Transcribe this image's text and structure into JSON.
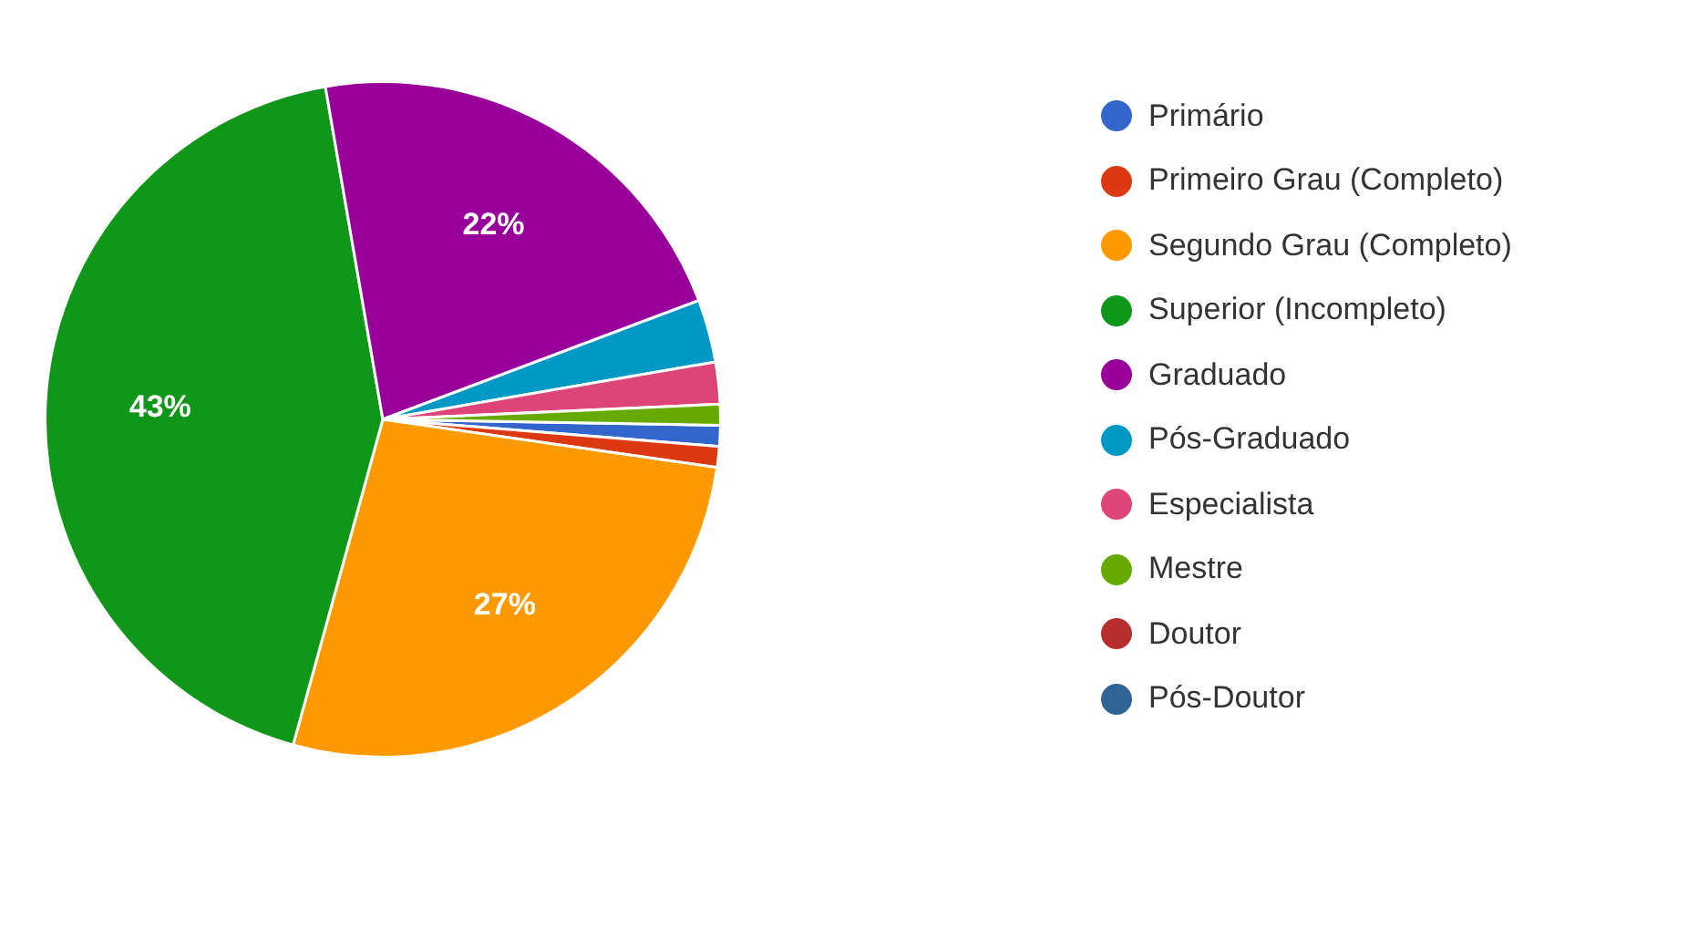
{
  "chart_data": {
    "type": "pie",
    "categories": [
      "Primário",
      "Primeiro Grau (Completo)",
      "Segundo Grau (Completo)",
      "Superior (Incompleto)",
      "Graduado",
      "Pós-Graduado",
      "Especialista",
      "Mestre",
      "Doutor",
      "Pós-Doutor"
    ],
    "values": [
      1,
      1,
      27,
      43,
      22,
      3,
      2,
      1,
      0,
      0
    ],
    "colors": [
      "#3366cc",
      "#dc3912",
      "#ff9900",
      "#109618",
      "#990099",
      "#0099c6",
      "#dd4477",
      "#66aa00",
      "#b82e2e",
      "#316395"
    ],
    "value_labels": [
      null,
      null,
      "27%",
      "43%",
      "22%",
      null,
      null,
      null,
      null,
      null
    ],
    "legend": "top right"
  }
}
